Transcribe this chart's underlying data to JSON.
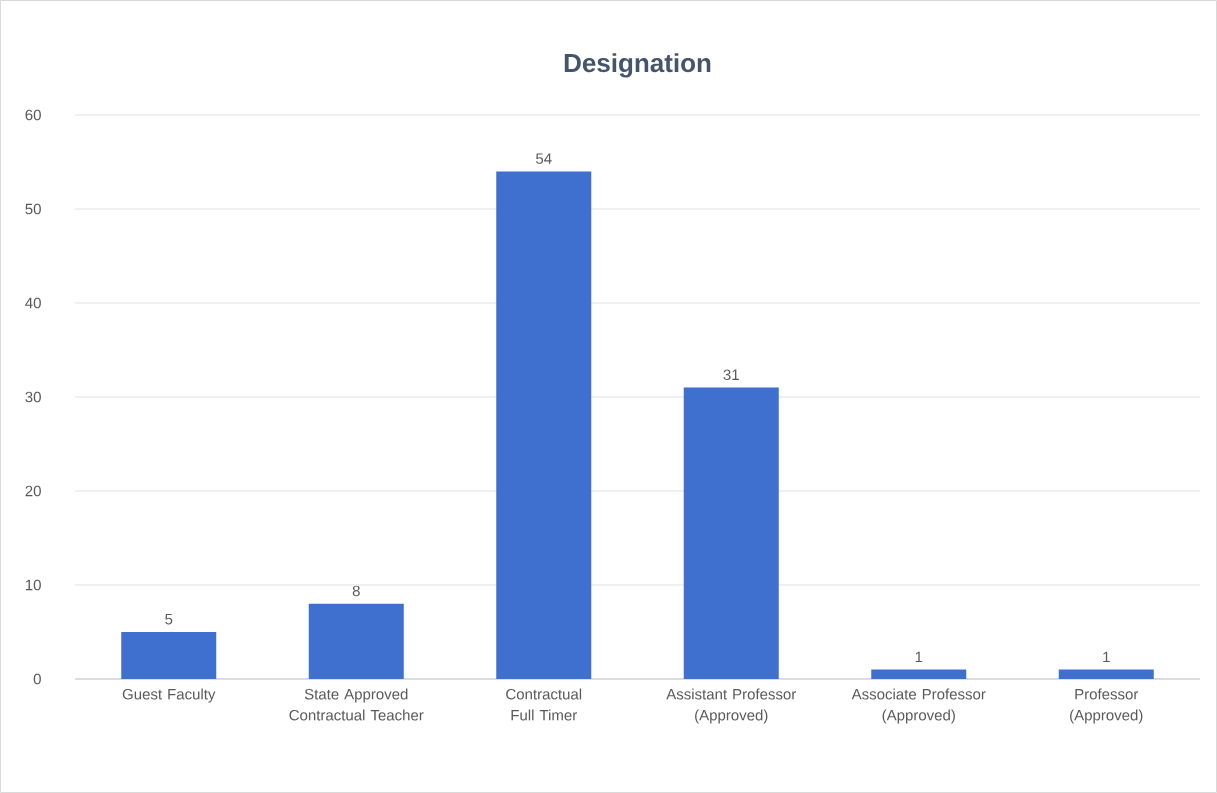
{
  "chart_data": {
    "type": "bar",
    "title": "Designation",
    "categories": [
      "Guest Faculty",
      "State Approved Contractual Teacher",
      "Contractual Full Timer",
      "Assistant Professor (Approved)",
      "Associate Professor (Approved)",
      "Professor (Approved)"
    ],
    "values": [
      5,
      8,
      54,
      31,
      1,
      1
    ],
    "color": "#3f6fcf",
    "ylim": [
      0,
      60
    ],
    "yticks": [
      0,
      10,
      20,
      30,
      40,
      50,
      60
    ],
    "grid": "y",
    "data_labels": true
  }
}
